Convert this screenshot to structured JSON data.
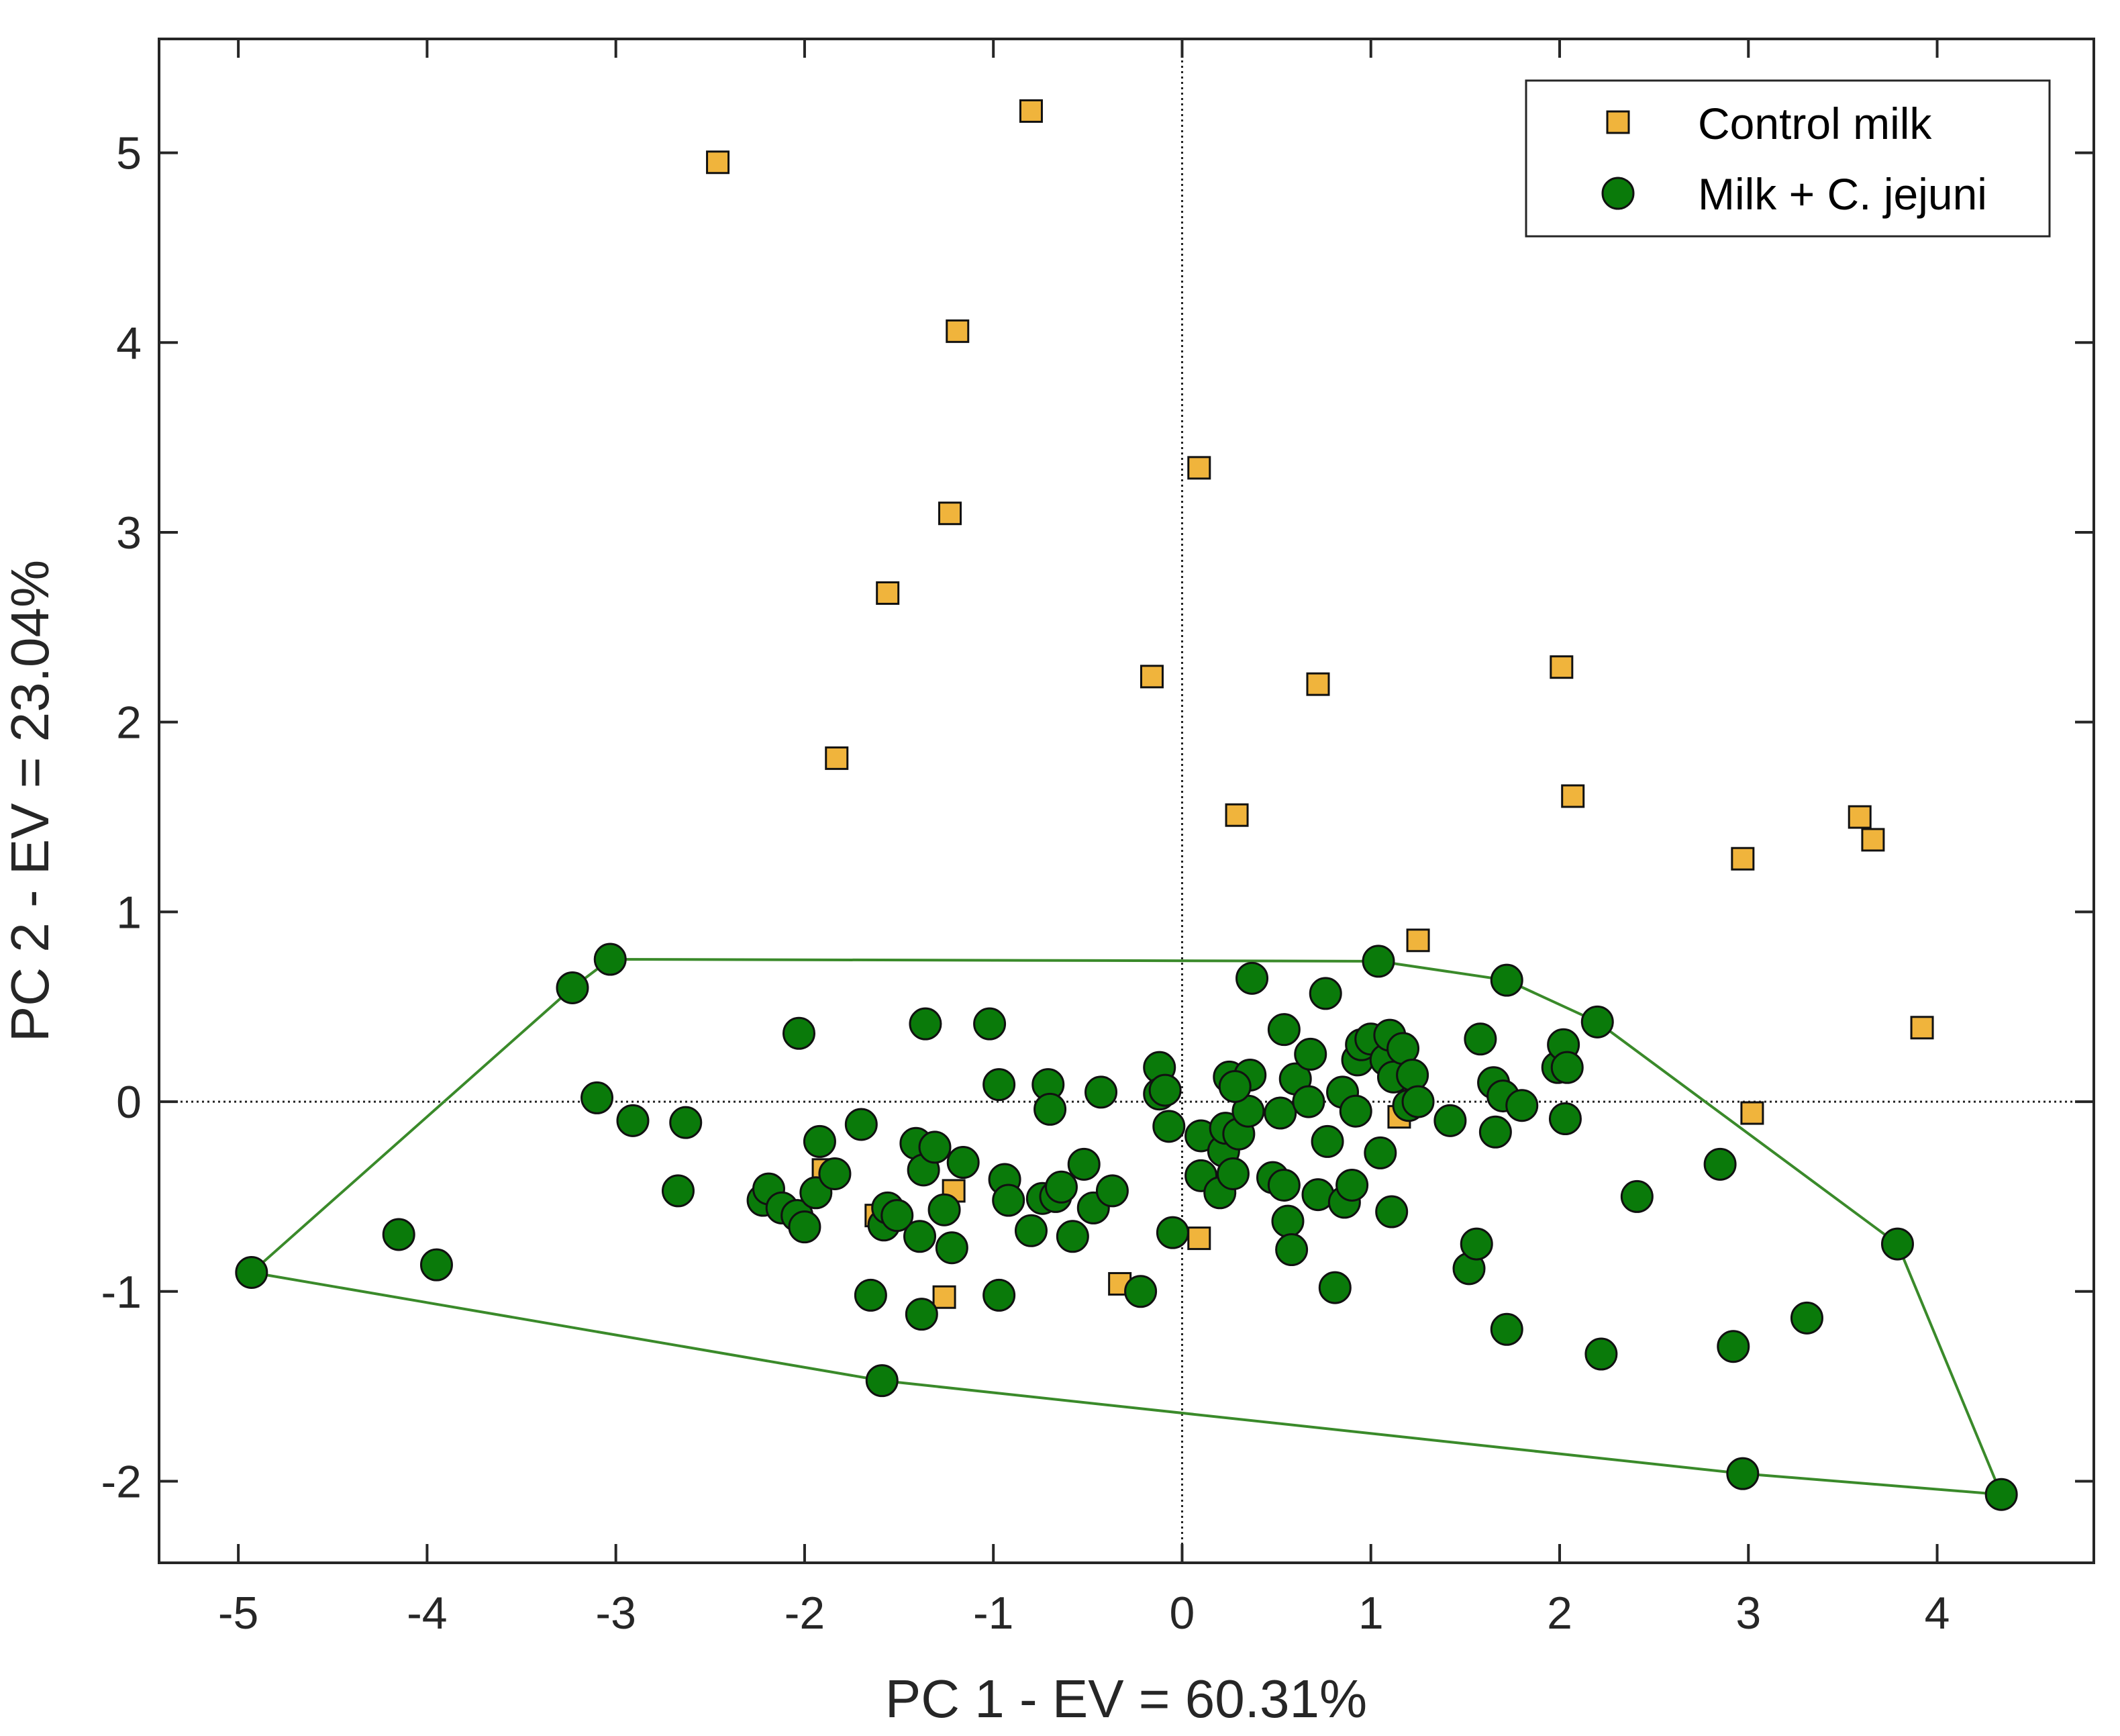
{
  "chart_data": {
    "type": "scatter",
    "title": "",
    "xlabel": "PC 1 - EV = 60.31%",
    "ylabel": "PC 2 - EV = 23.04%",
    "xlim": [
      -5.42,
      4.83
    ],
    "ylim": [
      -2.43,
      5.6
    ],
    "xticks": [
      -5,
      -4,
      -3,
      -2,
      -1,
      0,
      1,
      2,
      3,
      4
    ],
    "yticks": [
      -2,
      -1,
      0,
      1,
      2,
      3,
      4,
      5
    ],
    "reference_lines": {
      "x": 0,
      "y": 0,
      "style": "dotted"
    },
    "legend_position": "top-right",
    "colors": {
      "control_fill": "#f0b43c",
      "jejuni_fill": "#0a7a0a",
      "hull_stroke": "#3a8a2a",
      "marker_edge": "#111111"
    },
    "series": [
      {
        "name": "Control milk",
        "marker": "square",
        "points": [
          [
            -0.8,
            5.22
          ],
          [
            -2.46,
            4.95
          ],
          [
            -1.19,
            4.06
          ],
          [
            -1.23,
            3.1
          ],
          [
            0.09,
            3.34
          ],
          [
            -1.56,
            2.68
          ],
          [
            -0.16,
            2.24
          ],
          [
            0.72,
            2.2
          ],
          [
            2.01,
            2.29
          ],
          [
            -1.83,
            1.81
          ],
          [
            0.29,
            1.51
          ],
          [
            2.07,
            1.61
          ],
          [
            3.59,
            1.5
          ],
          [
            3.66,
            1.38
          ],
          [
            2.97,
            1.28
          ],
          [
            1.25,
            0.85
          ],
          [
            3.92,
            0.39
          ],
          [
            3.02,
            -0.06
          ],
          [
            1.15,
            -0.08
          ],
          [
            -1.21,
            -0.47
          ],
          [
            0.09,
            -0.72
          ],
          [
            -0.33,
            -0.96
          ],
          [
            -1.26,
            -1.03
          ],
          [
            -1.9,
            -0.36
          ],
          [
            -1.62,
            -0.6
          ]
        ]
      },
      {
        "name": "Milk + C. jejuni",
        "marker": "circle",
        "points": [
          [
            -4.93,
            -0.9
          ],
          [
            -4.15,
            -0.7
          ],
          [
            -3.95,
            -0.86
          ],
          [
            -3.23,
            0.6
          ],
          [
            -3.03,
            0.75
          ],
          [
            -3.1,
            0.02
          ],
          [
            -2.91,
            -0.1
          ],
          [
            -2.63,
            -0.11
          ],
          [
            -2.67,
            -0.47
          ],
          [
            -2.03,
            0.36
          ],
          [
            -2.22,
            -0.52
          ],
          [
            -2.19,
            -0.46
          ],
          [
            -2.12,
            -0.56
          ],
          [
            -2.04,
            -0.6
          ],
          [
            -2.0,
            -0.66
          ],
          [
            -1.94,
            -0.48
          ],
          [
            -1.92,
            -0.21
          ],
          [
            -1.84,
            -0.38
          ],
          [
            -1.7,
            -0.12
          ],
          [
            -1.65,
            -1.02
          ],
          [
            -1.58,
            -0.65
          ],
          [
            -1.56,
            -0.56
          ],
          [
            -1.51,
            -0.6
          ],
          [
            -1.41,
            -0.22
          ],
          [
            -1.39,
            -0.71
          ],
          [
            -1.37,
            -0.36
          ],
          [
            -1.36,
            0.41
          ],
          [
            -1.38,
            -1.12
          ],
          [
            -1.31,
            -0.24
          ],
          [
            -1.26,
            -0.57
          ],
          [
            -1.22,
            -0.77
          ],
          [
            -1.16,
            -0.32
          ],
          [
            -1.02,
            0.41
          ],
          [
            -0.97,
            0.09
          ],
          [
            -0.97,
            -1.02
          ],
          [
            -0.94,
            -0.41
          ],
          [
            -0.92,
            -0.52
          ],
          [
            -0.8,
            -0.68
          ],
          [
            -0.74,
            -0.51
          ],
          [
            -0.71,
            0.09
          ],
          [
            -0.7,
            -0.04
          ],
          [
            -0.67,
            -0.5
          ],
          [
            -0.64,
            -0.45
          ],
          [
            -0.58,
            -0.71
          ],
          [
            -0.52,
            -0.33
          ],
          [
            -0.47,
            -0.56
          ],
          [
            -0.43,
            0.05
          ],
          [
            -0.37,
            -0.47
          ],
          [
            -0.22,
            -1.0
          ],
          [
            -0.12,
            0.18
          ],
          [
            -0.12,
            0.04
          ],
          [
            -0.09,
            0.06
          ],
          [
            -0.07,
            -0.13
          ],
          [
            -0.05,
            -0.69
          ],
          [
            0.1,
            -0.18
          ],
          [
            0.1,
            -0.39
          ],
          [
            0.2,
            -0.48
          ],
          [
            0.22,
            -0.26
          ],
          [
            0.23,
            -0.14
          ],
          [
            0.25,
            0.13
          ],
          [
            0.27,
            -0.38
          ],
          [
            0.3,
            -0.17
          ],
          [
            0.35,
            -0.05
          ],
          [
            0.36,
            0.14
          ],
          [
            0.37,
            0.65
          ],
          [
            0.48,
            -0.4
          ],
          [
            0.52,
            -0.06
          ],
          [
            0.54,
            -0.44
          ],
          [
            0.54,
            0.38
          ],
          [
            0.56,
            -0.63
          ],
          [
            0.58,
            -0.78
          ],
          [
            0.6,
            0.12
          ],
          [
            0.67,
            0.0
          ],
          [
            0.72,
            -0.49
          ],
          [
            0.76,
            0.57
          ],
          [
            0.77,
            -0.21
          ],
          [
            0.81,
            -0.98
          ],
          [
            0.85,
            0.05
          ],
          [
            0.86,
            -0.53
          ],
          [
            0.9,
            -0.44
          ],
          [
            0.92,
            -0.05
          ],
          [
            0.93,
            0.22
          ],
          [
            0.95,
            0.3
          ],
          [
            1.0,
            0.33
          ],
          [
            1.04,
            0.74
          ],
          [
            1.05,
            -0.27
          ],
          [
            1.08,
            0.22
          ],
          [
            1.1,
            0.35
          ],
          [
            1.11,
            -0.58
          ],
          [
            1.12,
            0.13
          ],
          [
            1.17,
            0.28
          ],
          [
            1.2,
            -0.02
          ],
          [
            1.22,
            0.14
          ],
          [
            1.25,
            0.0
          ],
          [
            1.42,
            -0.1
          ],
          [
            1.52,
            -0.88
          ],
          [
            1.56,
            -0.75
          ],
          [
            1.58,
            0.33
          ],
          [
            1.65,
            0.1
          ],
          [
            1.66,
            -0.16
          ],
          [
            1.7,
            0.03
          ],
          [
            1.72,
            -1.2
          ],
          [
            1.72,
            0.64
          ],
          [
            1.8,
            -0.02
          ],
          [
            1.99,
            0.18
          ],
          [
            2.02,
            0.3
          ],
          [
            2.03,
            -0.09
          ],
          [
            2.04,
            0.18
          ],
          [
            2.2,
            0.42
          ],
          [
            2.22,
            -1.33
          ],
          [
            2.41,
            -0.5
          ],
          [
            2.85,
            -0.33
          ],
          [
            2.92,
            -1.29
          ],
          [
            2.97,
            -1.96
          ],
          [
            3.31,
            -1.14
          ],
          [
            3.79,
            -0.75
          ],
          [
            4.34,
            -2.07
          ],
          [
            -1.59,
            -1.47
          ],
          [
            0.68,
            0.25
          ],
          [
            0.28,
            0.08
          ]
        ]
      }
    ],
    "hull": [
      [
        -4.93,
        -0.9
      ],
      [
        -3.23,
        0.6
      ],
      [
        -3.03,
        0.75
      ],
      [
        1.04,
        0.74
      ],
      [
        1.72,
        0.64
      ],
      [
        2.2,
        0.42
      ],
      [
        3.79,
        -0.75
      ],
      [
        4.34,
        -2.07
      ],
      [
        2.97,
        -1.96
      ],
      [
        -1.59,
        -1.47
      ]
    ]
  }
}
